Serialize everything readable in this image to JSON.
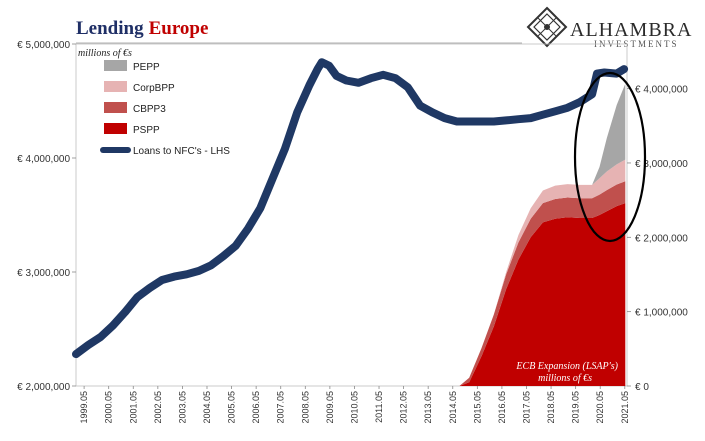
{
  "title_part1": "Lending",
  "title_part2": "Europe",
  "logo": {
    "name": "ALHAMBRA",
    "sub": "INVESTMENTS"
  },
  "units_label": "millions of €s",
  "annotation": {
    "line1": "ECB Expansion (LSAP's)",
    "line2": "millions of €s"
  },
  "colors": {
    "title1": "#1f2f66",
    "title2": "#c00000",
    "PEPP": "#a6a6a6",
    "CorpBPP": "#e6b3b3",
    "CBPP3": "#c0504d",
    "PSPP": "#c00000",
    "loans": "#1f3864"
  },
  "chart_data": {
    "type": "area",
    "left_axis": {
      "range": [
        2000000,
        5000000
      ],
      "ticks": [
        {
          "value": 2000000,
          "label": "€ 2,000,000"
        },
        {
          "value": 3000000,
          "label": "€ 3,000,000"
        },
        {
          "value": 4000000,
          "label": "€ 4,000,000"
        },
        {
          "value": 5000000,
          "label": "€ 5,000,000"
        }
      ]
    },
    "right_axis": {
      "range": [
        0,
        4600000
      ],
      "ticks": [
        {
          "value": 0,
          "label": "€ 0"
        },
        {
          "value": 1000000,
          "label": "€ 1,000,000"
        },
        {
          "value": 2000000,
          "label": "€ 2,000,000"
        },
        {
          "value": 3000000,
          "label": "€ 3,000,000"
        },
        {
          "value": 4000000,
          "label": "€ 4,000,000"
        }
      ]
    },
    "x_range": [
      1999.0,
      2021.42
    ],
    "x_tick_labels": [
      "1999.05",
      "2000.05",
      "2001.05",
      "2002.05",
      "2003.05",
      "2004.05",
      "2005.05",
      "2006.05",
      "2007.05",
      "2008.05",
      "2009.05",
      "2010.05",
      "2011.05",
      "2012.05",
      "2013.05",
      "2014.05",
      "2015.05",
      "2016.05",
      "2017.05",
      "2018.05",
      "2019.05",
      "2020.05",
      "2021.05"
    ],
    "legend": [
      {
        "name": "PEPP",
        "key": "PEPP"
      },
      {
        "name": "CorpBPP",
        "key": "CorpBPP"
      },
      {
        "name": "CBPP3",
        "key": "CBPP3"
      },
      {
        "name": "PSPP",
        "key": "PSPP"
      },
      {
        "name": "Loans to NFC's - LHS",
        "key": "loans"
      }
    ],
    "series_loans": {
      "name": "Loans to NFC's - LHS",
      "axis": "left",
      "points": [
        [
          1999.0,
          2280000
        ],
        [
          1999.5,
          2360000
        ],
        [
          2000.0,
          2430000
        ],
        [
          2000.5,
          2530000
        ],
        [
          2001.0,
          2650000
        ],
        [
          2001.5,
          2780000
        ],
        [
          2002.0,
          2860000
        ],
        [
          2002.5,
          2930000
        ],
        [
          2003.0,
          2960000
        ],
        [
          2003.5,
          2980000
        ],
        [
          2004.0,
          3010000
        ],
        [
          2004.5,
          3060000
        ],
        [
          2005.0,
          3140000
        ],
        [
          2005.5,
          3230000
        ],
        [
          2006.0,
          3380000
        ],
        [
          2006.5,
          3560000
        ],
        [
          2007.0,
          3820000
        ],
        [
          2007.5,
          4080000
        ],
        [
          2008.0,
          4400000
        ],
        [
          2008.5,
          4640000
        ],
        [
          2008.83,
          4780000
        ],
        [
          2009.0,
          4840000
        ],
        [
          2009.3,
          4810000
        ],
        [
          2009.6,
          4720000
        ],
        [
          2010.0,
          4680000
        ],
        [
          2010.5,
          4660000
        ],
        [
          2011.0,
          4700000
        ],
        [
          2011.5,
          4730000
        ],
        [
          2012.0,
          4700000
        ],
        [
          2012.5,
          4620000
        ],
        [
          2013.0,
          4460000
        ],
        [
          2013.5,
          4400000
        ],
        [
          2014.0,
          4350000
        ],
        [
          2014.5,
          4320000
        ],
        [
          2015.0,
          4320000
        ],
        [
          2015.5,
          4320000
        ],
        [
          2016.0,
          4320000
        ],
        [
          2016.5,
          4330000
        ],
        [
          2017.0,
          4340000
        ],
        [
          2017.5,
          4350000
        ],
        [
          2018.0,
          4380000
        ],
        [
          2018.5,
          4410000
        ],
        [
          2019.0,
          4440000
        ],
        [
          2019.5,
          4490000
        ],
        [
          2020.0,
          4560000
        ],
        [
          2020.2,
          4740000
        ],
        [
          2020.5,
          4750000
        ],
        [
          2021.0,
          4740000
        ],
        [
          2021.3,
          4780000
        ]
      ]
    },
    "series_stack": {
      "axis": "right",
      "x": [
        2014.6,
        2015.0,
        2015.5,
        2016.0,
        2016.5,
        2017.0,
        2017.5,
        2018.0,
        2018.5,
        2019.0,
        2019.5,
        2020.0,
        2020.3,
        2020.6,
        2021.0,
        2021.35
      ],
      "PSPP": [
        0,
        50000,
        400000,
        800000,
        1300000,
        1700000,
        2000000,
        2200000,
        2250000,
        2270000,
        2260000,
        2260000,
        2300000,
        2350000,
        2420000,
        2460000
      ],
      "CBPP3": [
        0,
        60000,
        110000,
        160000,
        200000,
        230000,
        250000,
        260000,
        265000,
        265000,
        265000,
        265000,
        275000,
        285000,
        290000,
        295000
      ],
      "CorpBPP": [
        0,
        0,
        0,
        0,
        30000,
        100000,
        140000,
        170000,
        180000,
        180000,
        180000,
        180000,
        220000,
        250000,
        270000,
        290000
      ],
      "PEPP": [
        0,
        0,
        0,
        0,
        0,
        0,
        0,
        0,
        0,
        0,
        0,
        0,
        150000,
        450000,
        800000,
        1020000
      ]
    }
  }
}
